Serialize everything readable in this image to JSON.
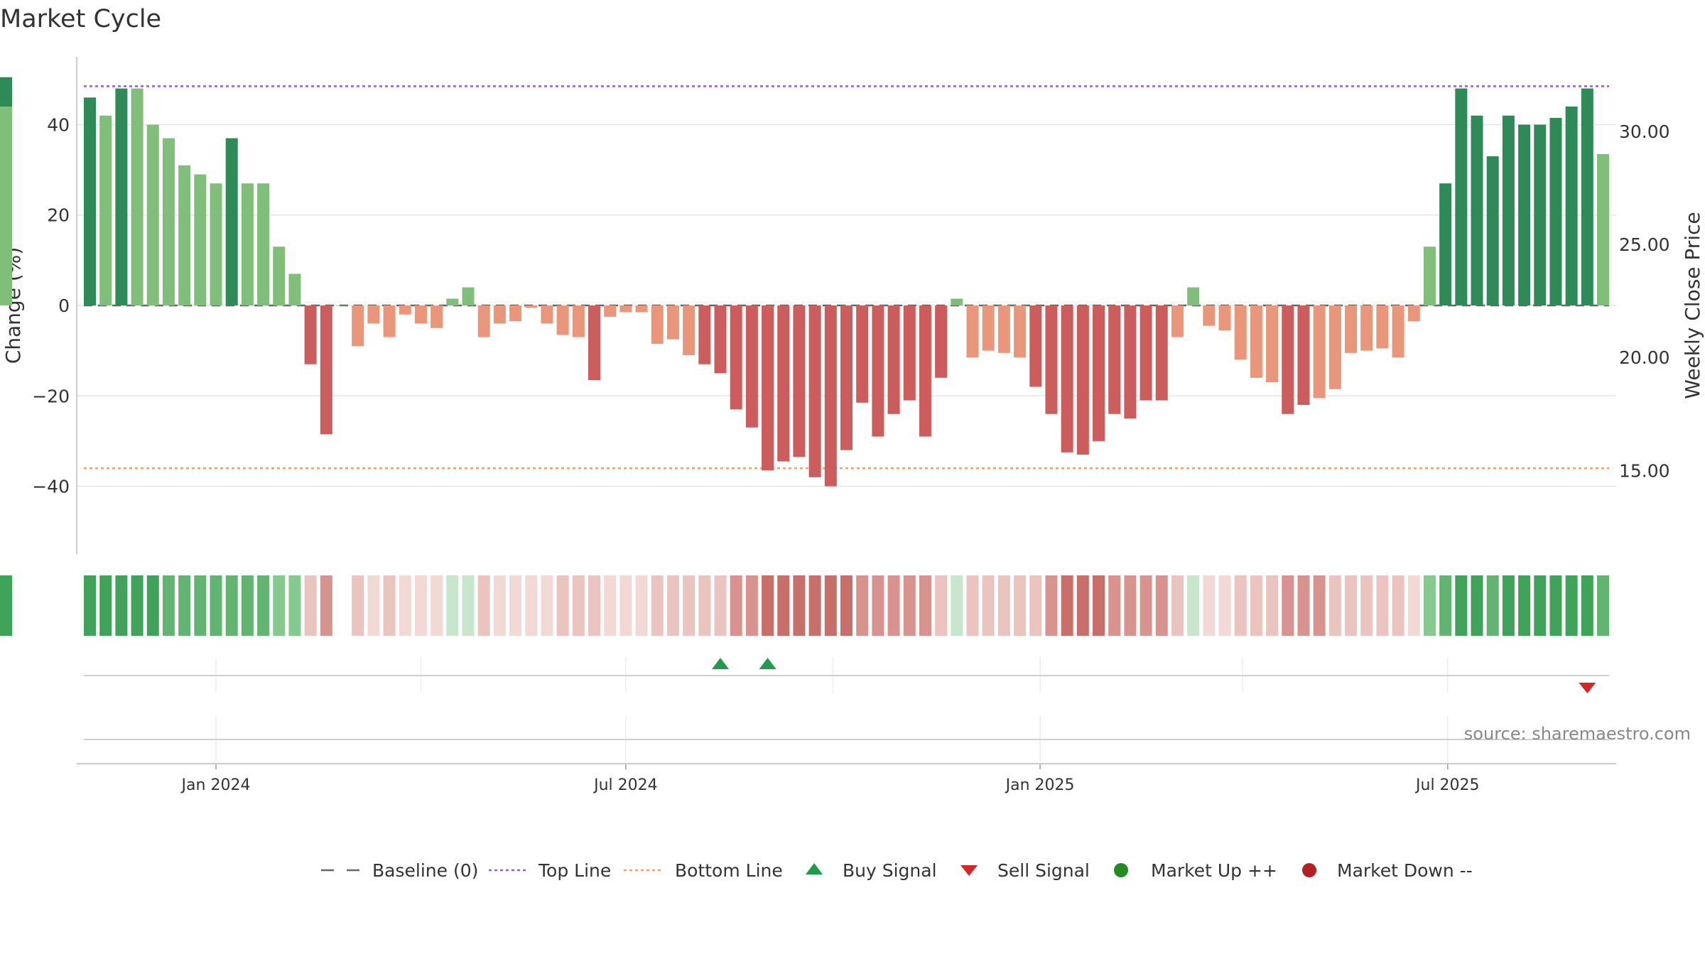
{
  "chart_data": {
    "type": "bar",
    "title": "Market Cycle",
    "ylabel_left": "Change (%)",
    "ylabel_right": "Weekly Close Price",
    "ylim_left": [
      -55,
      55
    ],
    "yticks_left": [
      -40,
      -20,
      0,
      20,
      40
    ],
    "ytick_labels_left": [
      "−40",
      "−20",
      "0",
      "20",
      "40"
    ],
    "ylim_right": [
      11.3,
      33.3
    ],
    "yticks_right": [
      15,
      20,
      25,
      30
    ],
    "ytick_labels_right": [
      "15.00",
      "20.00",
      "25.00",
      "30.00"
    ],
    "top_line": 48.5,
    "bottom_line": -36,
    "x_start_date": "2023-11-06",
    "x_end_date": "2025-09-08",
    "bar_dates": [
      "2023-11-06",
      "2023-11-13",
      "2023-11-20",
      "2023-11-27",
      "2023-12-04",
      "2023-12-11",
      "2023-12-18",
      "2023-12-25",
      "2024-01-01",
      "2024-01-08",
      "2024-01-15",
      "2024-01-22",
      "2024-01-29",
      "2024-02-05",
      "2024-02-12",
      "2024-02-19",
      "2024-02-26",
      "2024-03-04",
      "2024-03-11",
      "2024-03-18",
      "2024-03-25",
      "2024-04-01",
      "2024-04-08",
      "2024-04-15",
      "2024-04-22",
      "2024-04-29",
      "2024-05-06",
      "2024-05-13",
      "2024-05-20",
      "2024-05-27",
      "2024-06-03",
      "2024-06-10",
      "2024-06-17",
      "2024-06-24",
      "2024-07-01",
      "2024-07-08",
      "2024-07-15",
      "2024-07-22",
      "2024-07-29",
      "2024-08-05",
      "2024-08-12",
      "2024-08-19",
      "2024-08-26",
      "2024-09-02",
      "2024-09-09",
      "2024-09-16",
      "2024-09-23",
      "2024-09-30",
      "2024-10-07",
      "2024-10-14",
      "2024-10-21",
      "2024-10-28",
      "2024-11-04",
      "2024-11-11",
      "2024-11-18",
      "2024-11-25",
      "2024-12-02",
      "2024-12-09",
      "2024-12-16",
      "2024-12-23",
      "2024-12-30",
      "2025-01-06",
      "2025-01-13",
      "2025-01-20",
      "2025-01-27",
      "2025-02-03",
      "2025-02-10",
      "2025-02-17",
      "2025-02-24",
      "2025-03-03",
      "2025-03-10",
      "2025-03-17",
      "2025-03-24",
      "2025-03-31",
      "2025-04-07",
      "2025-04-14",
      "2025-04-21",
      "2025-04-28",
      "2025-05-05",
      "2025-05-12",
      "2025-05-19",
      "2025-05-26",
      "2025-06-02",
      "2025-06-09",
      "2025-06-16",
      "2025-06-23",
      "2025-06-30",
      "2025-07-07",
      "2025-07-14",
      "2025-07-21",
      "2025-07-28",
      "2025-08-04",
      "2025-08-11",
      "2025-08-18",
      "2025-08-25",
      "2025-09-01",
      "2025-09-08"
    ],
    "values": [
      46,
      42,
      48,
      48,
      40,
      37,
      31,
      29,
      27,
      37,
      27,
      27,
      13,
      7,
      -13,
      -28.5,
      0,
      -9,
      -4,
      -7,
      -2,
      -4,
      -5,
      1.5,
      4,
      -7,
      -4,
      -3.5,
      -0.5,
      -4,
      -6.5,
      -7,
      -16.5,
      -2.5,
      -1.5,
      -1.5,
      -8.5,
      -7.5,
      -11,
      -13,
      -15,
      -23,
      -27,
      -36.5,
      -34.5,
      -33.5,
      -38,
      -40,
      -32,
      -21.5,
      -29,
      -24,
      -21,
      -29,
      -16,
      1.5,
      -11.5,
      -10,
      -10.5,
      -11.5,
      -18,
      -24,
      -32.5,
      -33,
      -30,
      -24,
      -25,
      -21,
      -21,
      -7,
      4,
      -4.5,
      -5.5,
      -12,
      -16,
      -17,
      -24,
      -22,
      -20.5,
      -18.5,
      -10.5,
      -10,
      -9.5,
      -11.5,
      -3.5,
      13,
      27,
      48,
      42,
      33,
      42,
      40,
      40,
      41.5,
      44,
      48,
      33.5,
      37,
      50.5,
      44
    ],
    "strength": [
      3,
      2,
      3,
      2,
      2,
      2,
      2,
      2,
      2,
      3,
      2,
      2,
      2,
      1,
      2,
      3,
      0,
      1,
      1,
      1,
      1,
      1,
      1,
      1,
      1,
      1,
      1,
      1,
      1,
      1,
      1,
      1,
      2,
      1,
      1,
      1,
      1,
      1,
      1,
      2,
      2,
      2,
      2,
      3,
      3,
      3,
      3,
      3,
      2,
      2,
      2,
      2,
      2,
      2,
      2,
      1,
      1,
      1,
      1,
      1,
      2,
      2,
      3,
      3,
      2,
      2,
      2,
      2,
      2,
      1,
      1,
      1,
      1,
      1,
      1,
      1,
      2,
      2,
      1,
      1,
      1,
      1,
      1,
      1,
      1,
      1,
      3,
      3,
      3,
      3,
      3,
      3,
      3,
      3,
      3,
      3,
      2,
      3,
      3
    ],
    "x_tick_labels": [
      "Jan 2024",
      "Jul 2024",
      "Jan 2025",
      "Jul 2025"
    ],
    "x_tick_dates": [
      "2024-01-01",
      "2024-07-01",
      "2025-01-01",
      "2025-07-01"
    ],
    "buy_signals": [
      "2024-08-12",
      "2024-09-02"
    ],
    "sell_signals": [
      "2025-09-01"
    ],
    "colors": {
      "up_strong": "#2e8b57",
      "up_weak": "#80bf7a",
      "down_strong": "#cd5c5c",
      "down_weak": "#e9967a",
      "top_line": "#9b59d0",
      "bottom_line": "#f0a06a",
      "baseline": "#666666",
      "buy": "#1e9b4b",
      "sell": "#d62728",
      "market_up": "#228b22",
      "market_down": "#b22222"
    },
    "source": "source: sharemaestro.com",
    "legend": [
      {
        "label": "Baseline (0)",
        "symbol": "dash"
      },
      {
        "label": "Top Line",
        "symbol": "dot-purple"
      },
      {
        "label": "Bottom Line",
        "symbol": "dot-orange"
      },
      {
        "label": "Buy Signal",
        "symbol": "triangle-up"
      },
      {
        "label": "Sell Signal",
        "symbol": "triangle-down"
      },
      {
        "label": "Market Up ++",
        "symbol": "circle-green"
      },
      {
        "label": "Market Down --",
        "symbol": "circle-red"
      }
    ]
  }
}
